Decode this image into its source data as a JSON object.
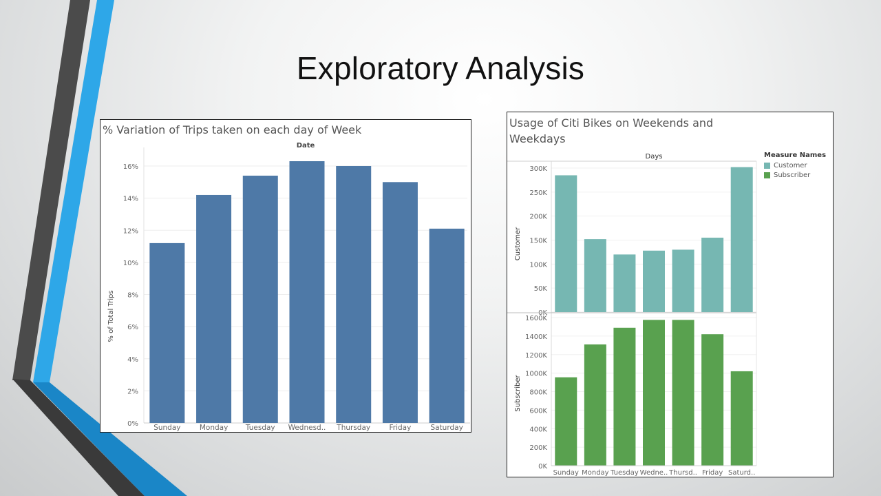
{
  "slide": {
    "title": "Exploratory Analysis",
    "accent_colors": {
      "stripe_dark": "#4a4a4a",
      "stripe_blue": "#2ea7e8",
      "wedge_blue": "#1a86c7",
      "wedge_dark": "#3a3a3a"
    }
  },
  "chart_data": [
    {
      "type": "bar",
      "title": "% Variation of Trips taken on each day of Week",
      "column_header": "Date",
      "xlabel": "",
      "ylabel": "% of Total Trips",
      "categories": [
        "Sunday",
        "Monday",
        "Tuesday",
        "Wednesd..",
        "Thursday",
        "Friday",
        "Saturday"
      ],
      "values": [
        11.2,
        14.2,
        15.4,
        16.3,
        16.0,
        15.0,
        12.1
      ],
      "ylim": [
        0,
        17
      ],
      "yticks": [
        0,
        2,
        4,
        6,
        8,
        10,
        12,
        14,
        16
      ],
      "ytick_labels": [
        "0%",
        "2%",
        "4%",
        "6%",
        "8%",
        "10%",
        "12%",
        "14%",
        "16%"
      ],
      "color": "#4e79a7",
      "grid": true
    },
    {
      "type": "bar",
      "title": "Usage of Citi Bikes on Weekends and Weekdays",
      "column_header": "Days",
      "categories": [
        "Sunday",
        "Monday",
        "Tuesday",
        "Wedne..",
        "Thursd..",
        "Friday",
        "Saturd.."
      ],
      "legend": {
        "title": "Measure Names",
        "position": "top-right",
        "items": [
          {
            "name": "Customer",
            "color": "#76b7b2"
          },
          {
            "name": "Subscriber",
            "color": "#59a14f"
          }
        ]
      },
      "series": [
        {
          "name": "Customer",
          "ylabel": "Customer",
          "values": [
            285000,
            152000,
            120000,
            128000,
            130000,
            155000,
            302000
          ],
          "ylim": [
            0,
            300000
          ],
          "yticks": [
            0,
            50000,
            100000,
            150000,
            200000,
            250000,
            300000
          ],
          "ytick_labels": [
            "0K",
            "50K",
            "100K",
            "150K",
            "200K",
            "250K",
            "300K"
          ],
          "color": "#76b7b2"
        },
        {
          "name": "Subscriber",
          "ylabel": "Subscriber",
          "values": [
            955,
            1310,
            1490,
            1575,
            1575,
            1420,
            1020
          ],
          "ylim": [
            0,
            1600
          ],
          "yticks": [
            0,
            200,
            400,
            600,
            800,
            1000,
            1200,
            1400,
            1600
          ],
          "ytick_labels": [
            "0K",
            "200K",
            "400K",
            "600K",
            "800K",
            "1000K",
            "1200K",
            "1400K",
            "1600K"
          ],
          "color": "#59a14f"
        }
      ],
      "grid": true
    }
  ]
}
